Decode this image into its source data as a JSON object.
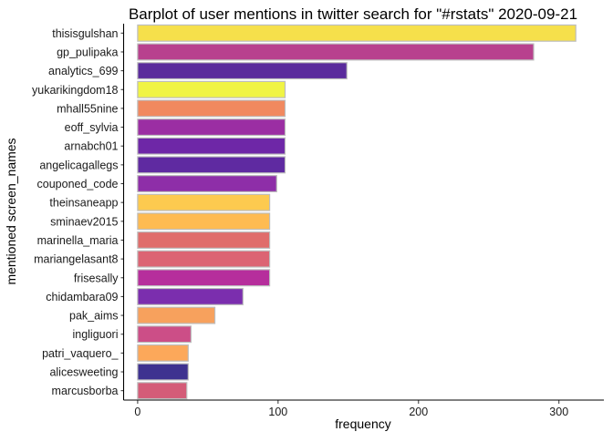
{
  "chart_data": {
    "type": "bar",
    "orientation": "horizontal",
    "title": "Barplot of user mentions in twitter search for \"#rstats\" 2020-09-21",
    "xlabel": "frequency",
    "ylabel": "mentioned screen_names",
    "xlim": [
      -10,
      332
    ],
    "xticks": [
      0,
      100,
      200,
      300
    ],
    "grid": false,
    "legend": "none",
    "bar_outline": "#bdbdbd",
    "categories": [
      "thisisgulshan",
      "gp_pulipaka",
      "analytics_699",
      "yukarikingdom18",
      "mhall55nine",
      "eoff_sylvia",
      "arnabch01",
      "angelicagallegs",
      "couponed_code",
      "theinsaneapp",
      "sminaev2015",
      "marinella_maria",
      "mariangelasant8",
      "frisesally",
      "chidambara09",
      "pak_aims",
      "ingliguori",
      "patri_vaquero_",
      "alicesweeting",
      "marcusborba"
    ],
    "values": [
      312,
      282,
      149,
      105,
      105,
      105,
      105,
      105,
      99,
      94,
      94,
      94,
      94,
      94,
      75,
      55,
      38,
      36,
      36,
      35
    ],
    "colors": [
      "#f6e04b",
      "#b8418e",
      "#5a2b9c",
      "#f0f445",
      "#f1895f",
      "#9b2ea3",
      "#6e27a7",
      "#5f2aa1",
      "#8e2ea8",
      "#fdca4f",
      "#febb52",
      "#e06d6b",
      "#dc6473",
      "#b62e9c",
      "#7b2eae",
      "#f7a15d",
      "#cc4e87",
      "#fca85a",
      "#3e3290",
      "#d45c78"
    ]
  }
}
